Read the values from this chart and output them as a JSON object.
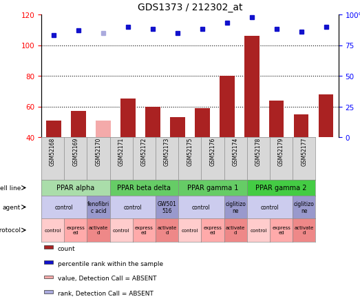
{
  "title": "GDS1373 / 212302_at",
  "samples": [
    "GSM52168",
    "GSM52169",
    "GSM52170",
    "GSM52171",
    "GSM52172",
    "GSM52173",
    "GSM52175",
    "GSM52176",
    "GSM52174",
    "GSM52178",
    "GSM52179",
    "GSM52177"
  ],
  "counts": [
    51,
    57,
    51,
    65,
    60,
    53,
    59,
    80,
    106,
    64,
    55,
    68
  ],
  "count_absent": [
    false,
    false,
    true,
    false,
    false,
    false,
    false,
    false,
    false,
    false,
    false,
    false
  ],
  "percentile_ranks": [
    83,
    87,
    85,
    90,
    88,
    85,
    88,
    93,
    98,
    88,
    86,
    90
  ],
  "rank_absent": [
    false,
    false,
    true,
    false,
    false,
    false,
    false,
    false,
    false,
    false,
    false,
    false
  ],
  "ylim_left": [
    40,
    120
  ],
  "ylim_right": [
    0,
    100
  ],
  "yticks_left": [
    40,
    60,
    80,
    100,
    120
  ],
  "yticks_right": [
    0,
    25,
    50,
    75,
    100
  ],
  "ytick_labels_right": [
    "0",
    "25",
    "50",
    "75",
    "100%"
  ],
  "bar_color": "#aa2222",
  "bar_absent_color": "#f4aaaa",
  "dot_color": "#1111cc",
  "dot_absent_color": "#aaaadd",
  "cell_lines": [
    {
      "label": "PPAR alpha",
      "start": 0,
      "end": 3,
      "color": "#aaddaa"
    },
    {
      "label": "PPAR beta delta",
      "start": 3,
      "end": 6,
      "color": "#66cc66"
    },
    {
      "label": "PPAR gamma 1",
      "start": 6,
      "end": 9,
      "color": "#66cc66"
    },
    {
      "label": "PPAR gamma 2",
      "start": 9,
      "end": 12,
      "color": "#44cc44"
    }
  ],
  "agents": [
    {
      "label": "control",
      "start": 0,
      "end": 2,
      "color": "#ccccee"
    },
    {
      "label": "fenofibri\nc acid",
      "start": 2,
      "end": 3,
      "color": "#9999cc"
    },
    {
      "label": "control",
      "start": 3,
      "end": 5,
      "color": "#ccccee"
    },
    {
      "label": "GW501\n516",
      "start": 5,
      "end": 6,
      "color": "#9999cc"
    },
    {
      "label": "control",
      "start": 6,
      "end": 8,
      "color": "#ccccee"
    },
    {
      "label": "ciglitizo\nne",
      "start": 8,
      "end": 9,
      "color": "#9999cc"
    },
    {
      "label": "control",
      "start": 9,
      "end": 11,
      "color": "#ccccee"
    },
    {
      "label": "ciglitizo\nne",
      "start": 11,
      "end": 12,
      "color": "#9999cc"
    }
  ],
  "protocols": [
    {
      "label": "control",
      "start": 0,
      "end": 1,
      "color": "#ffcccc"
    },
    {
      "label": "express\ned",
      "start": 1,
      "end": 2,
      "color": "#ffaaaa"
    },
    {
      "label": "activate\nd",
      "start": 2,
      "end": 3,
      "color": "#ee8888"
    },
    {
      "label": "control",
      "start": 3,
      "end": 4,
      "color": "#ffcccc"
    },
    {
      "label": "express\ned",
      "start": 4,
      "end": 5,
      "color": "#ffaaaa"
    },
    {
      "label": "activate\nd",
      "start": 5,
      "end": 6,
      "color": "#ee8888"
    },
    {
      "label": "control",
      "start": 6,
      "end": 7,
      "color": "#ffcccc"
    },
    {
      "label": "express\ned",
      "start": 7,
      "end": 8,
      "color": "#ffaaaa"
    },
    {
      "label": "activate\nd",
      "start": 8,
      "end": 9,
      "color": "#ee8888"
    },
    {
      "label": "control",
      "start": 9,
      "end": 10,
      "color": "#ffcccc"
    },
    {
      "label": "express\ned",
      "start": 10,
      "end": 11,
      "color": "#ffaaaa"
    },
    {
      "label": "activate\nd",
      "start": 11,
      "end": 12,
      "color": "#ee8888"
    }
  ],
  "row_labels": [
    "cell line",
    "agent",
    "protocol"
  ],
  "legend_items": [
    {
      "label": "count",
      "color": "#aa2222"
    },
    {
      "label": "percentile rank within the sample",
      "color": "#1111cc"
    },
    {
      "label": "value, Detection Call = ABSENT",
      "color": "#f4aaaa"
    },
    {
      "label": "rank, Detection Call = ABSENT",
      "color": "#aaaadd"
    }
  ]
}
